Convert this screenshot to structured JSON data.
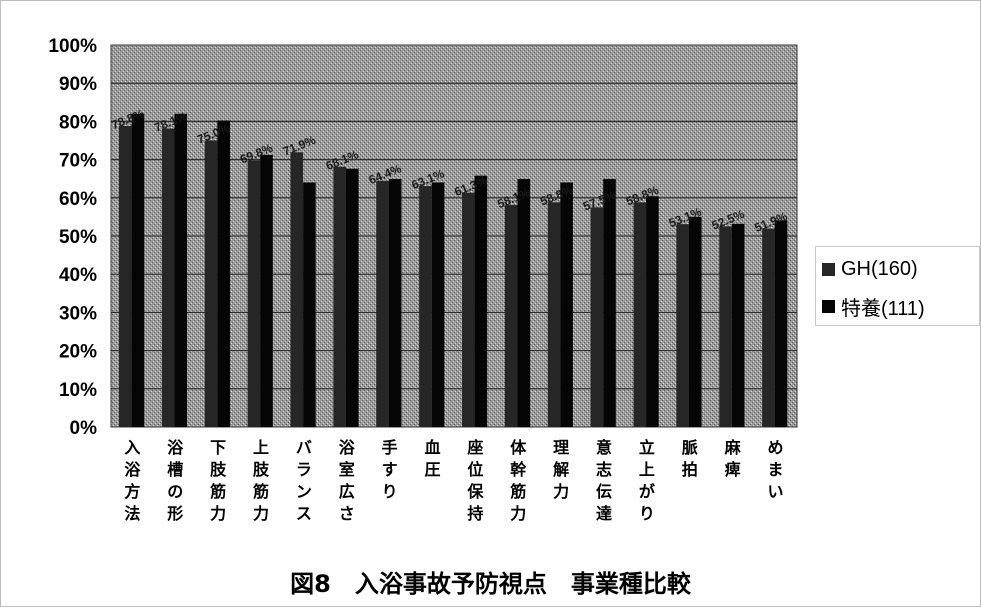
{
  "chart_data": {
    "type": "bar",
    "title": "図8　入浴事故予防視点　事業種比較",
    "categories": [
      "入浴方法",
      "浴槽の形",
      "下肢筋力",
      "上肢筋力",
      "バランス",
      "浴室広さ",
      "手すり",
      "血圧",
      "座位保持",
      "体幹筋力",
      "理解力",
      "意志伝達",
      "立上がり",
      "脈拍",
      "麻痺",
      "めまい"
    ],
    "series": [
      {
        "name": "GH(160)",
        "values": [
          78.8,
          78.1,
          75.0,
          69.8,
          71.9,
          68.1,
          64.4,
          63.1,
          61.3,
          58.1,
          58.8,
          57.5,
          58.8,
          53.1,
          52.5,
          51.9
        ]
      },
      {
        "name": "特養(111)",
        "values": [
          82.0,
          82.0,
          80.2,
          71.2,
          64.0,
          67.6,
          64.9,
          64.0,
          65.8,
          64.9,
          64.0,
          64.9,
          60.4,
          55.0,
          53.2,
          54.1
        ]
      }
    ],
    "data_labels": [
      "78.8%",
      "78.1%",
      "75.0%",
      "69.8%",
      "71.9%",
      "68.1%",
      "64.4%",
      "63.1%",
      "61.3%",
      "58.1%",
      "58.8%",
      "57.5%",
      "58.8%",
      "53.1%",
      "52.5%",
      "51.9%"
    ],
    "yticks": [
      "100%",
      "90%",
      "80%",
      "70%",
      "60%",
      "50%",
      "40%",
      "30%",
      "20%",
      "10%",
      "0%"
    ],
    "ylim": [
      0,
      100
    ],
    "xlabel": "",
    "ylabel": "",
    "grid": true,
    "legend_position": "right",
    "colors": {
      "gh": "#262626",
      "tokuyo": "#050505",
      "plot_bg": "#8f8f8f",
      "grid": "#1e1e1e"
    }
  }
}
